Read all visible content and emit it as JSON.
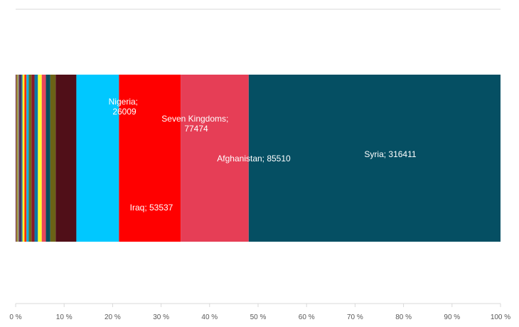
{
  "chart_data": {
    "type": "bar",
    "subtype": "100% stacked horizontal bar",
    "title": "",
    "xlabel": "",
    "ylabel": "",
    "xlim": [
      0,
      100
    ],
    "x_ticks": [
      "0 %",
      "10 %",
      "20 %",
      "30 %",
      "40 %",
      "50 %",
      "60 %",
      "70 %",
      "80 %",
      "90 %",
      "100 %"
    ],
    "grid": false,
    "legend": "none",
    "series": [
      {
        "values": [
          400
        ],
        "color": "#7f1a2a"
      },
      {
        "values": [
          900
        ],
        "color": "#4a1a4a"
      },
      {
        "values": [
          700
        ],
        "color": "#fffe2e"
      },
      {
        "values": [
          600
        ],
        "color": "#3d6b2e"
      },
      {
        "values": [
          800
        ],
        "color": "#ff6b00"
      },
      {
        "values": [
          700
        ],
        "color": "#13c7f0"
      },
      {
        "values": [
          1200
        ],
        "color": "#7f1a2a"
      },
      {
        "values": [
          1500
        ],
        "color": "#4a1a4a"
      },
      {
        "values": [
          1900
        ],
        "color": "#2e6f8f"
      },
      {
        "values": [
          2300
        ],
        "color": "#fffe2e"
      },
      {
        "values": [
          2600
        ],
        "color": "#ff2f00"
      },
      {
        "values": [
          2900
        ],
        "color": "#13b0e0"
      },
      {
        "values": [
          3400
        ],
        "color": "#6f6a16"
      },
      {
        "values": [
          3800
        ],
        "color": "#8a1a28"
      },
      {
        "values": [
          4300
        ],
        "color": "#0e76a8"
      },
      {
        "values": [
          4800
        ],
        "color": "#fffe2e"
      },
      {
        "values": [
          5200
        ],
        "color": "#e8475a"
      },
      {
        "values": [
          5600
        ],
        "color": "#074d5e"
      },
      {
        "values": [
          6700
        ],
        "color": "#6b6216"
      },
      {
        "values": [
          26009
        ],
        "color": "#500f18",
        "label": "Nigeria; 26009"
      },
      {
        "values": [
          53537
        ],
        "color": "#00c8ff",
        "label": "Iraq; 53537"
      },
      {
        "values": [
          77474
        ],
        "color": "#ff0000",
        "label": "Seven Kingdoms; 77474"
      },
      {
        "values": [
          85510
        ],
        "color": "#e63e56",
        "label": "Afghanistan; 85510"
      },
      {
        "values": [
          316411
        ],
        "color": "#054f63",
        "label": "Syria; 316411"
      }
    ]
  },
  "labels": {
    "nigeria_line1": "Nigeria;",
    "nigeria_line2": "26009",
    "iraq": "Iraq; 53537",
    "seven_line1": "Seven Kingdoms;",
    "seven_line2": "77474",
    "afghanistan": "Afghanistan; 85510",
    "syria": "Syria; 316411"
  }
}
